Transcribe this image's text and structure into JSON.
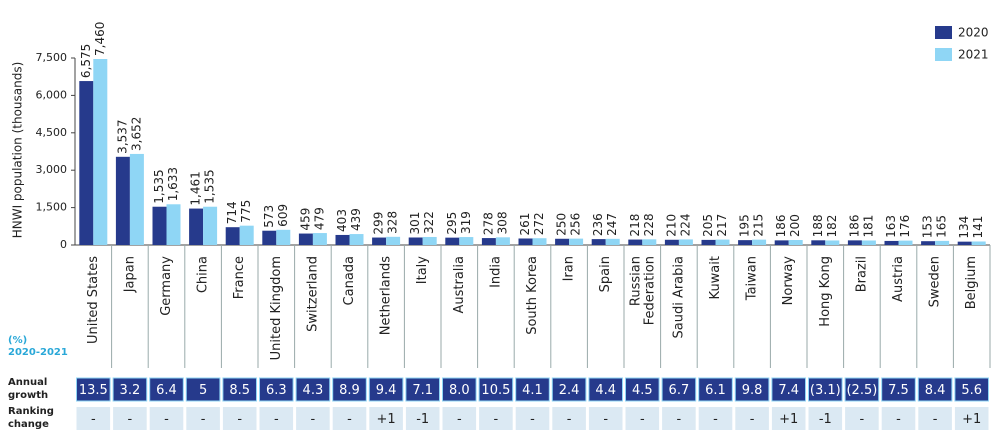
{
  "chart_data": {
    "type": "bar",
    "y_label": "HNWI population (thousands)",
    "categories": [
      "United States",
      "Japan",
      "Germany",
      "China",
      "France",
      "United Kingdom",
      "Switzerland",
      "Canada",
      "Netherlands",
      "Italy",
      "Australia",
      "India",
      "South Korea",
      "Iran",
      "Spain",
      "Russian Federation",
      "Saudi Arabia",
      "Kuwait",
      "Taiwan",
      "Norway",
      "Hong Kong",
      "Brazil",
      "Austria",
      "Sweden",
      "Belgium"
    ],
    "series": [
      {
        "name": "2020",
        "color": "#263a8c",
        "values": [
          6575,
          3537,
          1535,
          1461,
          714,
          573,
          459,
          403,
          299,
          301,
          295,
          278,
          261,
          250,
          236,
          218,
          210,
          205,
          195,
          186,
          188,
          186,
          163,
          153,
          134
        ],
        "value_labels": [
          "6,575",
          "3,537",
          "1,535",
          "1,461",
          "714",
          "573",
          "459",
          "403",
          "299",
          "301",
          "295",
          "278",
          "261",
          "250",
          "236",
          "218",
          "210",
          "205",
          "195",
          "186",
          "188",
          "186",
          "163",
          "153",
          "134"
        ]
      },
      {
        "name": "2021",
        "color": "#8fd6f5",
        "values": [
          7460,
          3652,
          1633,
          1535,
          775,
          609,
          479,
          439,
          328,
          322,
          319,
          308,
          272,
          256,
          247,
          228,
          224,
          217,
          215,
          200,
          182,
          181,
          176,
          165,
          141
        ],
        "value_labels": [
          "7,460",
          "3,652",
          "1,633",
          "1,535",
          "775",
          "609",
          "479",
          "439",
          "328",
          "322",
          "319",
          "308",
          "272",
          "256",
          "247",
          "228",
          "224",
          "217",
          "215",
          "200",
          "182",
          "181",
          "176",
          "165",
          "141"
        ]
      }
    ],
    "ylim": [
      0,
      7500
    ],
    "yticks": [
      0,
      {
        "value": 1500,
        "label": "1,500"
      },
      {
        "value": 3000,
        "label": "3,000"
      },
      {
        "value": 4500,
        "label": "4,500"
      },
      {
        "value": 6000,
        "label": "6,000"
      },
      {
        "value": 7500,
        "label": "7,500"
      }
    ],
    "legend": "top-right"
  },
  "table": {
    "unit": "(%)",
    "period": "2020-2021",
    "rows": [
      {
        "label": [
          "Annual",
          "growth"
        ],
        "values": [
          "13.5",
          "3.2",
          "6.4",
          "5",
          "8.5",
          "6.3",
          "4.3",
          "8.9",
          "9.4",
          "7.1",
          "8.0",
          "10.5",
          "4.1",
          "2.4",
          "4.4",
          "4.5",
          "6.7",
          "6.1",
          "9.8",
          "7.4",
          "(3.1)",
          "(2.5)",
          "7.5",
          "8.4",
          "5.6"
        ]
      },
      {
        "label": [
          "Ranking",
          "change"
        ],
        "values": [
          "-",
          "-",
          "-",
          "-",
          "-",
          "-",
          "-",
          "-",
          "+1",
          "-1",
          "-",
          "-",
          "-",
          "-",
          "-",
          "-",
          "-",
          "-",
          "-",
          "+1",
          "-1",
          "-",
          "-",
          "-",
          "+1"
        ]
      }
    ]
  }
}
